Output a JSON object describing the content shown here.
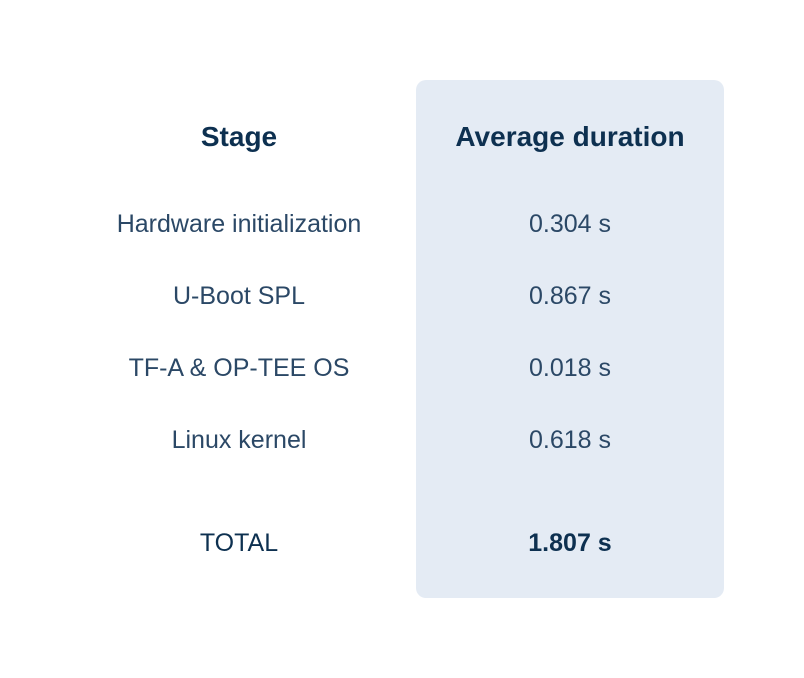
{
  "table": {
    "headers": {
      "stage": "Stage",
      "duration": "Average duration"
    },
    "rows": [
      {
        "stage": "Hardware initialization",
        "duration": "0.304 s"
      },
      {
        "stage": "U-Boot SPL",
        "duration": "0.867 s"
      },
      {
        "stage": "TF-A & OP-TEE OS",
        "duration": "0.018 s"
      },
      {
        "stage": "Linux kernel",
        "duration": "0.618 s"
      }
    ],
    "total": {
      "stage": "TOTAL",
      "duration": "1.807 s"
    }
  },
  "colors": {
    "highlight_background": "#e4ebf4",
    "header_text": "#0d3050",
    "body_text": "#2b4866"
  }
}
